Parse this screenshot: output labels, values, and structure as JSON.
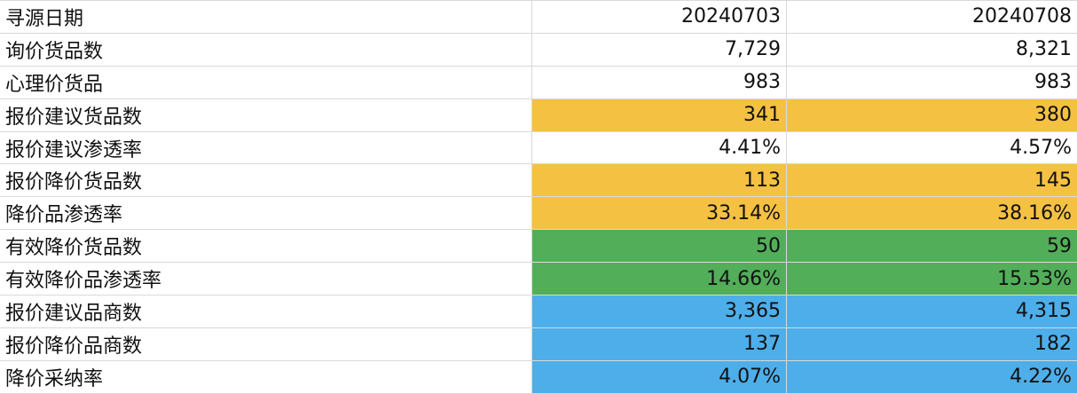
{
  "colors": {
    "orange": "#f5c142",
    "green": "#53ae5a",
    "blue": "#4eaee9",
    "none": "#ffffff"
  },
  "rows": [
    {
      "label": "寻源日期",
      "c1": "20240703",
      "c2": "20240708",
      "fill": "none"
    },
    {
      "label": "询价货品数",
      "c1": "7,729",
      "c2": "8,321",
      "fill": "none"
    },
    {
      "label": "心理价货品",
      "c1": "983",
      "c2": "983",
      "fill": "none"
    },
    {
      "label": "报价建议货品数",
      "c1": "341",
      "c2": "380",
      "fill": "orange"
    },
    {
      "label": "报价建议渗透率",
      "c1": "4.41%",
      "c2": "4.57%",
      "fill": "none"
    },
    {
      "label": "报价降价货品数",
      "c1": "113",
      "c2": "145",
      "fill": "orange"
    },
    {
      "label": "降价品渗透率",
      "c1": "33.14%",
      "c2": "38.16%",
      "fill": "orange"
    },
    {
      "label": "有效降价货品数",
      "c1": "50",
      "c2": "59",
      "fill": "green"
    },
    {
      "label": "有效降价品渗透率",
      "c1": "14.66%",
      "c2": "15.53%",
      "fill": "green"
    },
    {
      "label": "报价建议品商数",
      "c1": "3,365",
      "c2": "4,315",
      "fill": "blue"
    },
    {
      "label": "报价降价品商数",
      "c1": "137",
      "c2": "182",
      "fill": "blue"
    },
    {
      "label": "降价采纳率",
      "c1": "4.07%",
      "c2": "4.22%",
      "fill": "blue"
    }
  ]
}
